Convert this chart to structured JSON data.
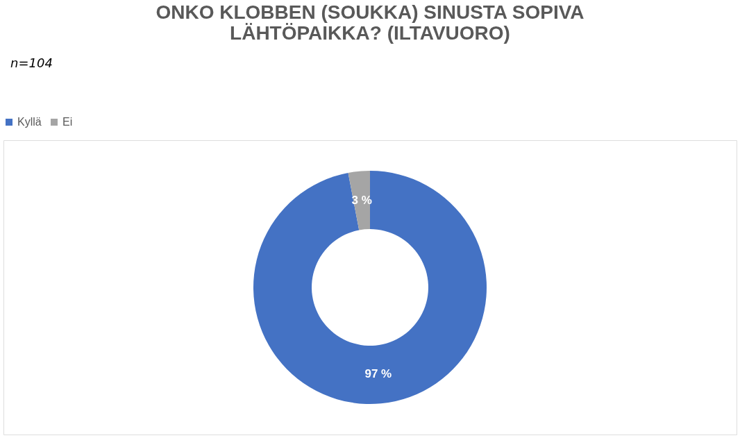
{
  "chart_data": {
    "type": "donut",
    "title": [
      "ONKO KLOBBEN (SOUKKA) SINUSTA SOPIVA",
      "LÄHTÖPAIKKA? (ILTAVUORO)"
    ],
    "categories": [
      "Kyllä",
      "Ei"
    ],
    "values": [
      97,
      3
    ],
    "colors": [
      "#4472c4",
      "#a5a5a5"
    ],
    "value_labels": [
      "97 %",
      "3 %"
    ],
    "legend": "top",
    "annotations": [
      "n=104"
    ]
  }
}
